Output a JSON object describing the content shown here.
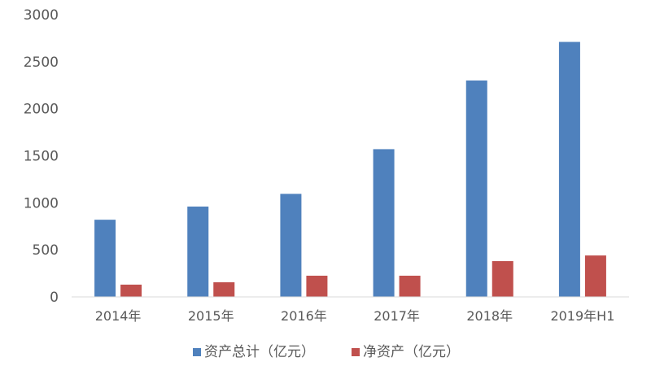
{
  "chart_data": {
    "type": "bar",
    "categories": [
      "2014年",
      "2015年",
      "2016年",
      "2017年",
      "2018年",
      "2019年H1"
    ],
    "series": [
      {
        "name": "资产总计（亿元）",
        "color": "#4f81bd",
        "values": [
          820,
          960,
          1095,
          1570,
          2300,
          2710
        ]
      },
      {
        "name": "净资产（亿元）",
        "color": "#c0504d",
        "values": [
          130,
          155,
          225,
          225,
          380,
          440
        ]
      }
    ],
    "ylim": [
      0,
      3000
    ],
    "yticks": [
      0,
      500,
      1000,
      1500,
      2000,
      2500,
      3000
    ],
    "grid": false,
    "legend": "bottom",
    "title": "",
    "xlabel": "",
    "ylabel": ""
  }
}
